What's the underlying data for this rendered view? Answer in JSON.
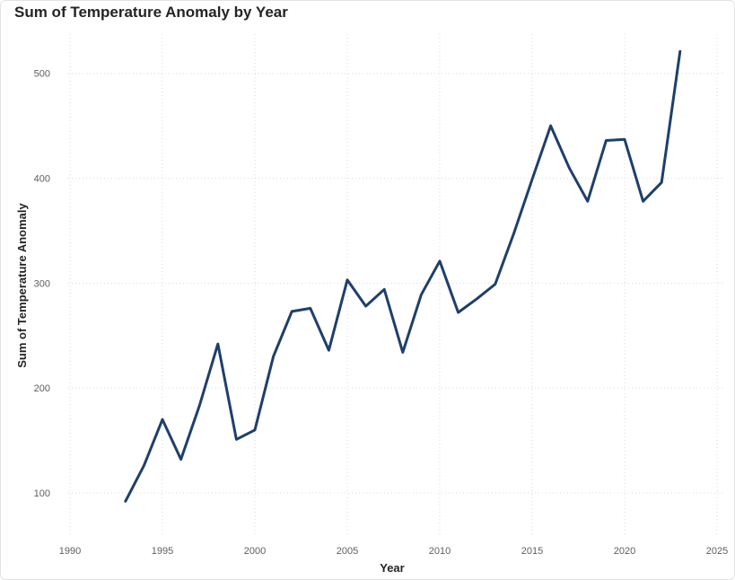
{
  "title": "Sum of Temperature Anomaly by Year",
  "chart_data": {
    "type": "line",
    "title": "Sum of Temperature Anomaly by Year",
    "xlabel": "Year",
    "ylabel": "Sum of Temperature Anomaly",
    "xlim": [
      1990,
      2025
    ],
    "ylim": [
      58,
      540
    ],
    "xticks": [
      1990,
      1995,
      2000,
      2005,
      2010,
      2015,
      2020,
      2025
    ],
    "yticks": [
      100,
      200,
      300,
      400,
      500
    ],
    "grid": true,
    "line_color": "#1f3f6b",
    "series": [
      {
        "x": [
          1993,
          1994,
          1995,
          1996,
          1997,
          1998,
          1999,
          2000,
          2001,
          2002,
          2003,
          2004,
          2005,
          2006,
          2007,
          2008,
          2009,
          2010,
          2011,
          2012,
          2013,
          2014,
          2015,
          2016,
          2017,
          2018,
          2019,
          2020,
          2021,
          2022,
          2023
        ],
        "values": [
          92,
          126,
          170,
          132,
          183,
          242,
          151,
          160,
          230,
          273,
          276,
          236,
          303,
          278,
          294,
          234,
          289,
          321,
          272,
          285,
          299,
          347,
          399,
          450,
          410,
          378,
          436,
          437,
          378,
          396,
          521
        ]
      }
    ]
  }
}
